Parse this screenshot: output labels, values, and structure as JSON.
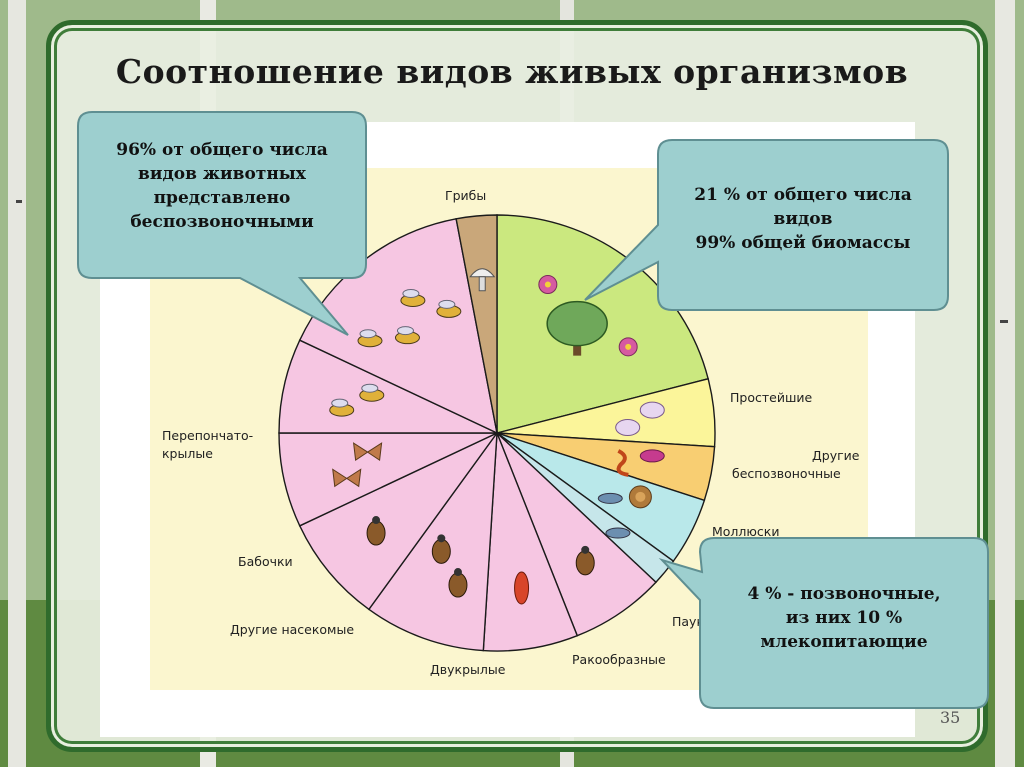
{
  "title": "Соотношение видов живых организмов",
  "slide_number": "35",
  "callouts": {
    "invertebrates": "96% от общего числа\nвидов животных\nпредставлено\nбеспозвоночными",
    "plants": "21 % от общего числа\nвидов\n99% общей биомассы",
    "vertebrates": "4 %  - позвоночные,\nиз них 10 %\nмлекопитающие"
  },
  "colors": {
    "plants": "#cbe87f",
    "fungi": "#c9a77a",
    "insects": "#f6c6e2",
    "protists": "#fbf59a",
    "other_invertebrates": "#f8ce72",
    "mollusks": "#b9e8ea",
    "vertebrates": "#c6e6ea",
    "callout_fill": "#9dcfcf",
    "callout_border": "#5f8f92",
    "frame": "#2f6b2c"
  },
  "chart_data": {
    "type": "pie",
    "title": "",
    "slices": [
      {
        "label": "",
        "value": 21,
        "color": "#cbe87f",
        "icons": [
          "flower-icon",
          "tree-icon",
          "daisy-icon"
        ]
      },
      {
        "label": "Простейшие",
        "value": 5,
        "color": "#fbf59a",
        "icons": [
          "amoeba-icon",
          "paramecium-icon"
        ]
      },
      {
        "label": "Другие беспозвоночные",
        "value": 4,
        "color": "#f8ce72",
        "icons": [
          "coral-icon",
          "worm-icon"
        ]
      },
      {
        "label": "Моллюски",
        "value": 5,
        "color": "#b9e8ea",
        "icons": [
          "snail-icon",
          "fish-icon"
        ]
      },
      {
        "label": "",
        "value": 2,
        "color": "#c6e6ea",
        "icons": [
          "bird-icon"
        ]
      },
      {
        "label": "Паукообразные",
        "value": 7,
        "color": "#f6c6e2",
        "icons": [
          "spider-icon"
        ]
      },
      {
        "label": "Ракообразные",
        "value": 7,
        "color": "#f6c6e2",
        "icons": [
          "crayfish-icon"
        ]
      },
      {
        "label": "Двукрылые",
        "value": 9,
        "color": "#f6c6e2",
        "icons": [
          "fly-icon",
          "mosquito-icon"
        ]
      },
      {
        "label": "Другие насекомые",
        "value": 8,
        "color": "#f6c6e2",
        "icons": [
          "grasshopper-icon"
        ]
      },
      {
        "label": "Бабочки",
        "value": 7,
        "color": "#f6c6e2",
        "icons": [
          "butterfly-icon",
          "moth-icon"
        ]
      },
      {
        "label": "Перепончато-крылые",
        "value": 7,
        "color": "#f6c6e2",
        "icons": [
          "bee-icon",
          "wasp-icon"
        ]
      },
      {
        "label": "",
        "value": 15,
        "color": "#f6c6e2",
        "icons": [
          "beetle-icon",
          "beetle-icon",
          "beetle-icon",
          "beetle-icon"
        ]
      },
      {
        "label": "Грибы",
        "value": 3,
        "color": "#c9a77a",
        "icons": [
          "mushroom-icon"
        ]
      }
    ],
    "legend": "none"
  }
}
